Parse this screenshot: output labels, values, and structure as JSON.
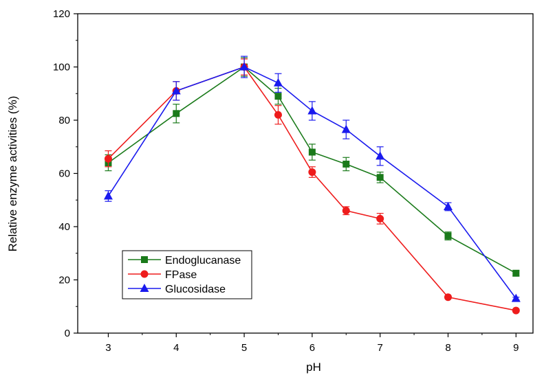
{
  "chart_data": {
    "type": "line",
    "title": "",
    "xlabel": "pH",
    "ylabel": "Relative enzyme activities (%)",
    "xlim": [
      2.55,
      9.25
    ],
    "ylim": [
      0,
      120
    ],
    "xticks": [
      3,
      4,
      5,
      6,
      7,
      8,
      9
    ],
    "yticks": [
      0,
      20,
      40,
      60,
      80,
      100,
      120
    ],
    "grid": false,
    "legend_position": "bottom-left",
    "x": [
      3,
      4,
      5,
      5.5,
      6,
      6.5,
      7,
      8,
      9
    ],
    "series": [
      {
        "name": "Endoglucanase",
        "color": "#1a7a1a",
        "marker": "square",
        "values": [
          64,
          82.5,
          100,
          89,
          68,
          63.5,
          58.5,
          36.5,
          22.5
        ],
        "errors": [
          3,
          3.5,
          3.5,
          3,
          3,
          2.5,
          2,
          1.5,
          1
        ]
      },
      {
        "name": "FPase",
        "color": "#ee1c1c",
        "marker": "circle",
        "values": [
          65.5,
          91,
          100,
          82,
          60.5,
          46,
          43,
          13.5,
          8.5
        ],
        "errors": [
          3,
          3.5,
          3,
          3.5,
          2,
          1.5,
          2,
          0.5,
          0.5
        ]
      },
      {
        "name": "Glucosidase",
        "color": "#1a1aee",
        "marker": "triangle",
        "values": [
          51.5,
          91,
          100,
          94,
          83.5,
          76.5,
          66.5,
          47.5,
          13
        ],
        "errors": [
          2,
          3.5,
          4,
          3.5,
          3.5,
          3.5,
          3.5,
          1.5,
          0.5
        ]
      }
    ]
  }
}
